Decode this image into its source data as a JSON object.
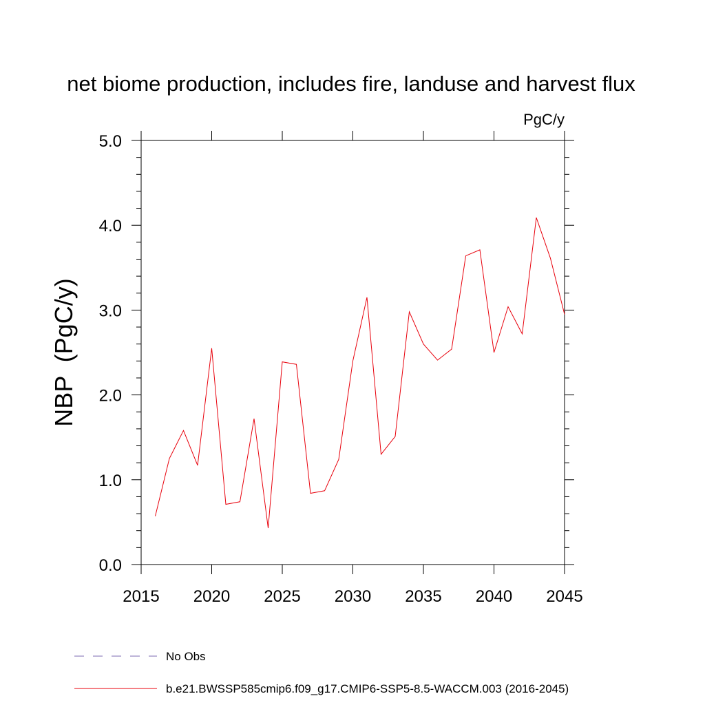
{
  "chart_data": {
    "type": "line",
    "title": "net biome production, includes fire, landuse and harvest flux",
    "units_label": "PgC/y",
    "xlabel": "",
    "ylabel": "NBP  (PgC/y)",
    "xlim": [
      2015,
      2045
    ],
    "ylim": [
      0.0,
      5.0
    ],
    "x_ticks": [
      2015,
      2020,
      2025,
      2030,
      2035,
      2040,
      2045
    ],
    "x_tick_labels": [
      "2015",
      "2020",
      "2025",
      "2030",
      "2035",
      "2040",
      "2045"
    ],
    "y_ticks": [
      0.0,
      1.0,
      2.0,
      3.0,
      4.0,
      5.0
    ],
    "y_tick_labels": [
      "0.0",
      "1.0",
      "2.0",
      "3.0",
      "4.0",
      "5.0"
    ],
    "grid": false,
    "legend_position": "bottom",
    "legend": [
      {
        "label": "No Obs",
        "color": "#7b68b0",
        "style": "dashed"
      },
      {
        "label": "b.e21.BWSSP585cmip6.f09_g17.CMIP6-SSP5-8.5-WACCM.003 (2016-2045)",
        "color": "#e8000b",
        "style": "solid"
      }
    ],
    "series": [
      {
        "name": "b.e21.BWSSP585cmip6.f09_g17.CMIP6-SSP5-8.5-WACCM.003 (2016-2045)",
        "color": "#e8000b",
        "x": [
          2016,
          2017,
          2018,
          2019,
          2020,
          2021,
          2022,
          2023,
          2024,
          2025,
          2026,
          2027,
          2028,
          2029,
          2030,
          2031,
          2032,
          2033,
          2034,
          2035,
          2036,
          2037,
          2038,
          2039,
          2040,
          2041,
          2042,
          2043,
          2044,
          2045
        ],
        "y": [
          0.57,
          1.25,
          1.58,
          1.17,
          2.55,
          0.71,
          0.74,
          1.72,
          0.43,
          2.39,
          2.36,
          0.84,
          0.87,
          1.24,
          2.4,
          3.15,
          1.3,
          1.51,
          2.98,
          2.6,
          2.41,
          2.54,
          3.64,
          3.71,
          2.5,
          3.04,
          2.72,
          4.09,
          3.61,
          2.95
        ]
      }
    ]
  }
}
